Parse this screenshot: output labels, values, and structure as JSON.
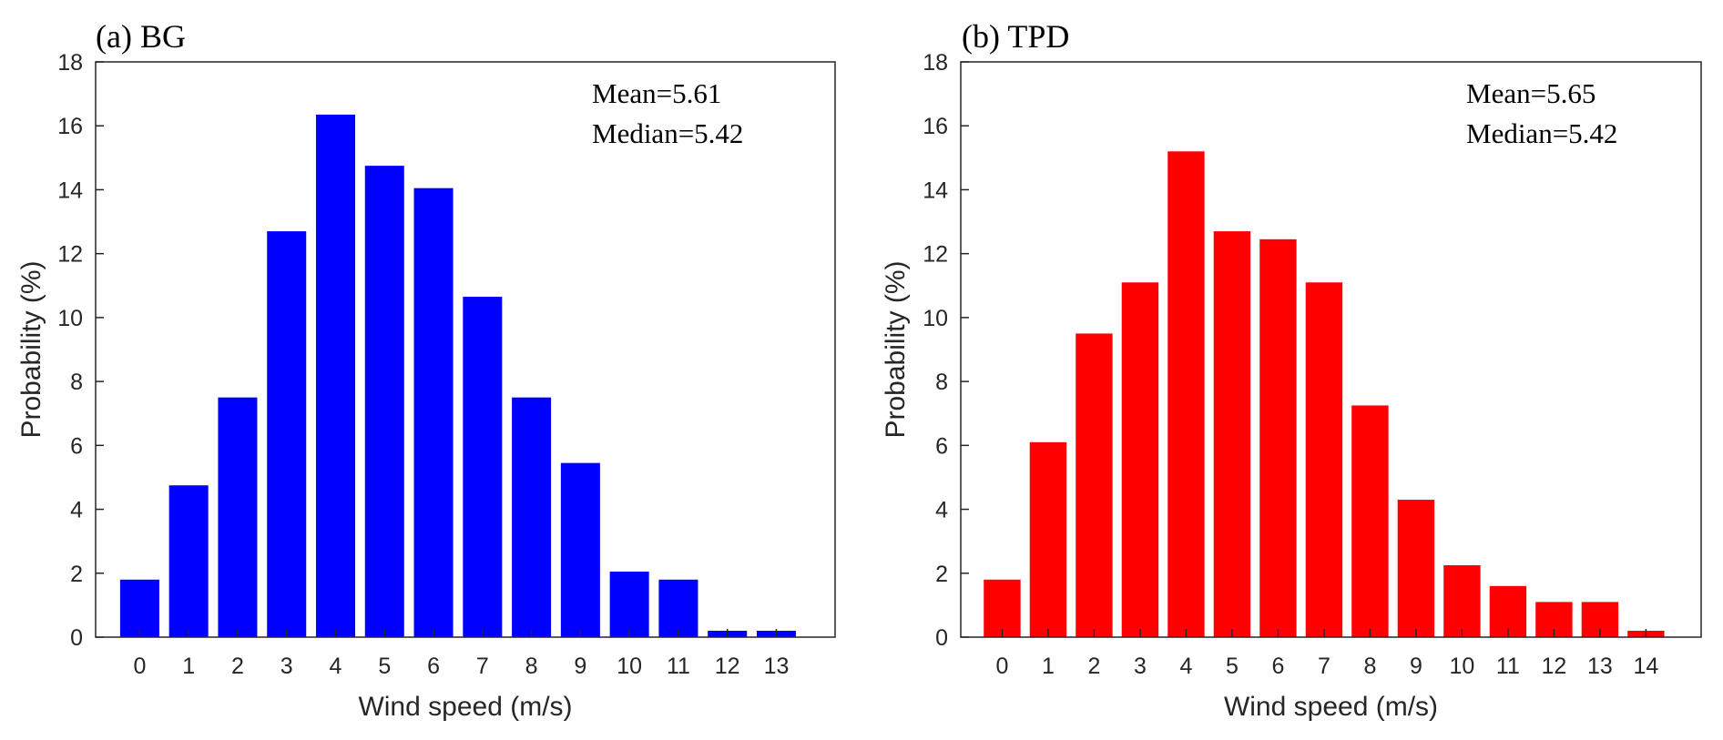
{
  "chart_data": [
    {
      "type": "bar",
      "title": "(a) BG",
      "xlabel": "Wind speed (m/s)",
      "ylabel": "Probability (%)",
      "ylim": [
        0,
        18
      ],
      "yticks": [
        "0",
        "2",
        "4",
        "6",
        "8",
        "10",
        "12",
        "14",
        "16",
        "18"
      ],
      "categories": [
        "0",
        "1",
        "2",
        "3",
        "4",
        "5",
        "6",
        "7",
        "8",
        "9",
        "10",
        "11",
        "12",
        "13"
      ],
      "values": [
        1.8,
        4.75,
        7.5,
        12.7,
        16.35,
        14.75,
        14.05,
        10.65,
        7.5,
        5.45,
        2.05,
        1.8,
        0.2,
        0.2
      ],
      "color": "#0000ff",
      "annotations": [
        "Mean=5.61",
        "Median=5.42"
      ],
      "legend": "none",
      "grid": false
    },
    {
      "type": "bar",
      "title": "(b) TPD",
      "xlabel": "Wind speed (m/s)",
      "ylabel": "Probability (%)",
      "ylim": [
        0,
        18
      ],
      "yticks": [
        "0",
        "2",
        "4",
        "6",
        "8",
        "10",
        "12",
        "14",
        "16",
        "18"
      ],
      "categories": [
        "0",
        "1",
        "2",
        "3",
        "4",
        "5",
        "6",
        "7",
        "8",
        "9",
        "10",
        "11",
        "12",
        "13",
        "14"
      ],
      "values": [
        1.8,
        6.1,
        9.5,
        11.1,
        15.2,
        12.7,
        12.45,
        11.1,
        7.25,
        4.3,
        2.25,
        1.6,
        1.1,
        1.1,
        0.2
      ],
      "color": "#ff0000",
      "annotations": [
        "Mean=5.65",
        "Median=5.42"
      ],
      "legend": "none",
      "grid": false
    }
  ]
}
